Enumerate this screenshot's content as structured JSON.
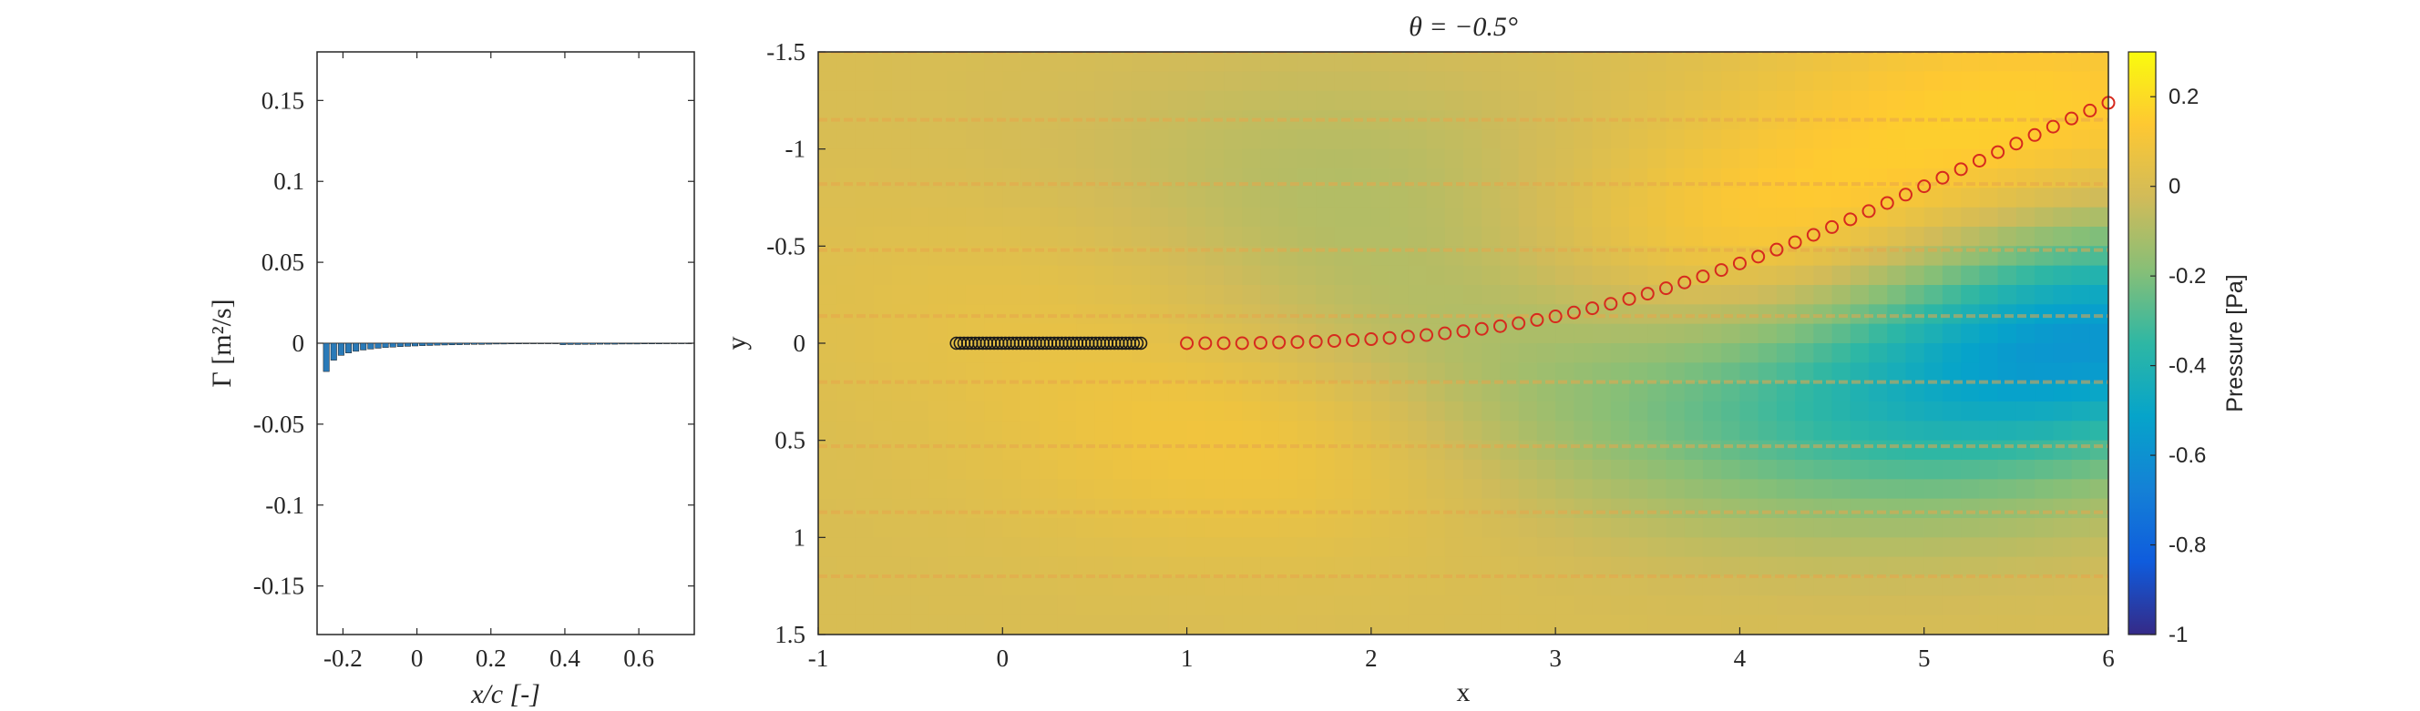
{
  "chart_data": [
    {
      "type": "bar",
      "xlabel": "x/c [-]",
      "ylabel": "Γ [m²/s]",
      "xlim": [
        -0.27,
        0.75
      ],
      "ylim": [
        -0.18,
        0.18
      ],
      "xticks": [
        "-0.2",
        "0",
        "0.2",
        "0.4",
        "0.6"
      ],
      "xtick_values": [
        -0.2,
        0,
        0.2,
        0.4,
        0.6
      ],
      "yticks": [
        "0.15",
        "0.1",
        "0.05",
        "0",
        "-0.05",
        "-0.1",
        "-0.15"
      ],
      "ytick_values": [
        0.15,
        0.1,
        0.05,
        0,
        -0.05,
        -0.1,
        -0.15
      ],
      "bar_color": "#2a7ab8",
      "x": [
        -0.245,
        -0.225,
        -0.205,
        -0.185,
        -0.165,
        -0.145,
        -0.125,
        -0.105,
        -0.085,
        -0.065,
        -0.045,
        -0.025,
        -0.005,
        0.015,
        0.035,
        0.055,
        0.075,
        0.095,
        0.115,
        0.135,
        0.155,
        0.175,
        0.195,
        0.215,
        0.235,
        0.255,
        0.275,
        0.295,
        0.315,
        0.335,
        0.355,
        0.375,
        0.395,
        0.415,
        0.435,
        0.455,
        0.475,
        0.495,
        0.515,
        0.535,
        0.555,
        0.575,
        0.595,
        0.615,
        0.635,
        0.655,
        0.675,
        0.695,
        0.715,
        0.735
      ],
      "values": [
        -0.0175,
        -0.0105,
        -0.0075,
        -0.006,
        -0.005,
        -0.0042,
        -0.0036,
        -0.0031,
        -0.0027,
        -0.0024,
        -0.0021,
        -0.0019,
        -0.0017,
        -0.0015,
        -0.0014,
        -0.0012,
        -0.0011,
        -0.001,
        -0.0009,
        -0.0008,
        -0.0007,
        -0.0007,
        -0.0006,
        -0.0005,
        -0.0005,
        -0.0004,
        -0.0004,
        -0.0003,
        -0.0003,
        -0.0003,
        -0.0002,
        -0.0002,
        -0.0009,
        -0.0008,
        -0.0008,
        -0.0007,
        -0.0007,
        -0.0006,
        -0.0006,
        -0.0006,
        -0.0005,
        -0.0005,
        -0.0005,
        -0.0004,
        -0.0004,
        -0.0004,
        -0.0003,
        -0.0003,
        -0.0003,
        -0.0002
      ]
    },
    {
      "type": "heatmap",
      "title": "θ = −0.5°",
      "xlabel": "x",
      "ylabel": "y",
      "xlim": [
        -1,
        6
      ],
      "ylim": [
        -1.5,
        1.5
      ],
      "y_reversed": true,
      "xticks": [
        "-1",
        "0",
        "1",
        "2",
        "3",
        "4",
        "5",
        "6"
      ],
      "xtick_values": [
        -1,
        0,
        1,
        2,
        3,
        4,
        5,
        6
      ],
      "yticks": [
        "-1.5",
        "-1",
        "-0.5",
        "0",
        "0.5",
        "1",
        "1.5"
      ],
      "ytick_values": [
        -1.5,
        -1,
        -0.5,
        0,
        0.5,
        1,
        1.5
      ],
      "colorbar": {
        "label": "Pressure [Pa]",
        "range": [
          -1,
          0.3
        ],
        "ticks": [
          "0.2",
          "0",
          "-0.2",
          "-0.4",
          "-0.6",
          "-0.8",
          "-1"
        ],
        "tick_values": [
          0.2,
          0,
          -0.2,
          -0.4,
          -0.6,
          -0.8,
          -1
        ],
        "colormap": "parula",
        "stops": [
          "#352a87",
          "#0f5cdd",
          "#1481d6",
          "#06a4ca",
          "#2eb7a4",
          "#87bf77",
          "#d1bb59",
          "#fec832",
          "#f9fb0e"
        ]
      },
      "background_pressure": 0.0,
      "pressure_sources": [
        {
          "x": 1.6,
          "y": 0.45,
          "dp": 0.13
        },
        {
          "x": 1.8,
          "y": -0.9,
          "dp": -0.08
        },
        {
          "x": 0.3,
          "y": -0.25,
          "dp": 0.05
        },
        {
          "x": 4.45,
          "y": -0.45,
          "dp": 0.22
        },
        {
          "x": 5.6,
          "y": -1.2,
          "dp": 0.15
        },
        {
          "x": 5.9,
          "y": -0.1,
          "dp": -0.55
        },
        {
          "x": 4.8,
          "y": 0.4,
          "dp": -0.25
        },
        {
          "x": 3.0,
          "y": 0.3,
          "dp": -0.12
        },
        {
          "x": 2.2,
          "y": -0.2,
          "dp": -0.08
        }
      ],
      "streak_y": [
        -1.5,
        -1.15,
        -0.82,
        -0.48,
        -0.14,
        0.2,
        0.53,
        0.87,
        1.2,
        1.53
      ],
      "streak_color": "#e8a64a",
      "plate": {
        "x_start": -0.25,
        "x_end": 0.75,
        "y": 0,
        "count": 50,
        "marker_color": "#1a1a1a"
      },
      "wake": {
        "x": [
          1.0,
          1.1,
          1.2,
          1.3,
          1.4,
          1.5,
          1.6,
          1.7,
          1.8,
          1.9,
          2.0,
          2.1,
          2.2,
          2.3,
          2.4,
          2.5,
          2.6,
          2.7,
          2.8,
          2.9,
          3.0,
          3.1,
          3.2,
          3.3,
          3.4,
          3.5,
          3.6,
          3.7,
          3.8,
          3.9,
          4.0,
          4.1,
          4.2,
          4.3,
          4.4,
          4.5,
          4.6,
          4.7,
          4.8,
          4.9,
          5.0,
          5.1,
          5.2,
          5.3,
          5.4,
          5.5,
          5.6,
          5.7,
          5.8,
          5.9,
          6.0
        ],
        "y": [
          0.0,
          0.0,
          0.0,
          0.0,
          -0.002,
          -0.004,
          -0.006,
          -0.008,
          -0.012,
          -0.016,
          -0.021,
          -0.027,
          -0.034,
          -0.042,
          -0.051,
          -0.062,
          -0.074,
          -0.088,
          -0.103,
          -0.12,
          -0.138,
          -0.158,
          -0.18,
          -0.203,
          -0.228,
          -0.255,
          -0.283,
          -0.313,
          -0.344,
          -0.377,
          -0.411,
          -0.446,
          -0.482,
          -0.52,
          -0.558,
          -0.598,
          -0.638,
          -0.68,
          -0.722,
          -0.765,
          -0.808,
          -0.852,
          -0.896,
          -0.94,
          -0.984,
          -1.028,
          -1.072,
          -1.115,
          -1.157,
          -1.198,
          -1.238
        ],
        "marker_color": "#d62a1e"
      }
    }
  ]
}
